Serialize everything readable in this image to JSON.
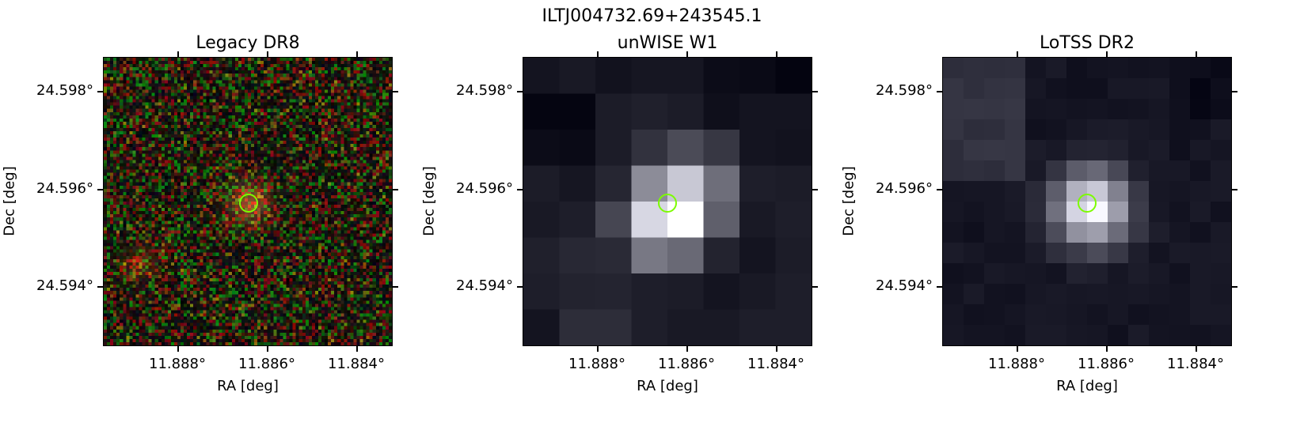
{
  "figure": {
    "suptitle": "ILTJ004732.69+243545.1"
  },
  "panels": [
    {
      "title": "Legacy DR8",
      "xlabel": "RA [deg]",
      "ylabel": "Dec [deg]",
      "xticks": [
        "11.888°",
        "11.886°",
        "11.884°"
      ],
      "yticks": [
        "24.598°",
        "24.596°",
        "24.594°"
      ],
      "image": "rgb-noise"
    },
    {
      "title": "unWISE W1",
      "xlabel": "RA [deg]",
      "ylabel": "Dec [deg]",
      "xticks": [
        "11.888°",
        "11.886°",
        "11.884°"
      ],
      "yticks": [
        "24.598°",
        "24.596°",
        "24.594°"
      ],
      "image": "grey-blocks"
    },
    {
      "title": "LoTSS DR2",
      "xlabel": "RA [deg]",
      "ylabel": "Dec [deg]",
      "xticks": [
        "11.888°",
        "11.886°",
        "11.884°"
      ],
      "yticks": [
        "24.598°",
        "24.596°",
        "24.594°"
      ],
      "image": "grey-fine"
    }
  ],
  "marker_color": "#7cfc00"
}
